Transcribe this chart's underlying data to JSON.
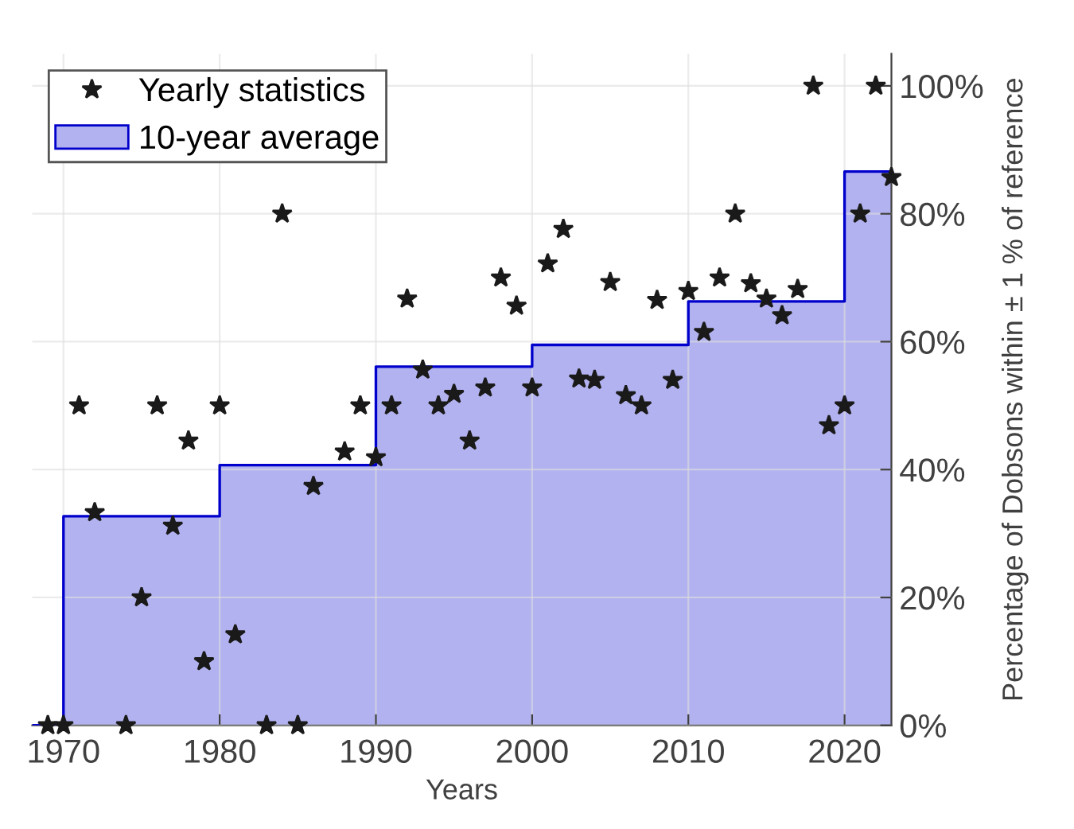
{
  "chart_data": {
    "type": "scatter",
    "xlabel": "Years",
    "ylabel": "Percentage of Dobsons within ± 1 % of reference",
    "xlim": [
      1968,
      2023
    ],
    "xticks": [
      1970,
      1980,
      1990,
      2000,
      2010,
      2020
    ],
    "ylim": [
      0,
      105
    ],
    "yticks": [
      {
        "value": 0,
        "label": "0%"
      },
      {
        "value": 20,
        "label": "20%"
      },
      {
        "value": 40,
        "label": "40%"
      },
      {
        "value": 60,
        "label": "60%"
      },
      {
        "value": 80,
        "label": "80%"
      },
      {
        "value": 100,
        "label": "100%"
      }
    ],
    "grid": true,
    "legend": "top left",
    "series": [
      {
        "name": "Yearly statistics",
        "marker": "star",
        "color": "#1a1a1a",
        "x": [
          1969,
          1970,
          1971,
          1972,
          1974,
          1975,
          1976,
          1977,
          1978,
          1979,
          1980,
          1981,
          1983,
          1984,
          1985,
          1986,
          1988,
          1989,
          1990,
          1991,
          1992,
          1993,
          1994,
          1995,
          1996,
          1997,
          1998,
          1999,
          2000,
          2001,
          2002,
          2003,
          2004,
          2005,
          2006,
          2007,
          2008,
          2009,
          2010,
          2011,
          2012,
          2013,
          2014,
          2015,
          2016,
          2017,
          2018,
          2019,
          2020,
          2021,
          2022,
          2023
        ],
        "values": [
          0,
          0,
          50,
          33.3,
          0,
          20,
          50,
          31.2,
          44.5,
          10,
          50,
          14.2,
          0,
          80,
          0,
          37.4,
          42.8,
          50,
          41.9,
          50,
          66.7,
          55.6,
          50,
          51.8,
          44.5,
          52.8,
          70,
          65.6,
          52.8,
          72.2,
          77.6,
          54.2,
          54,
          69.3,
          51.6,
          50,
          66.5,
          54,
          67.9,
          61.5,
          70,
          80,
          69.1,
          66.7,
          64.1,
          68.2,
          100,
          46.9,
          50,
          80,
          100,
          85.7
        ]
      },
      {
        "name": "10-year average",
        "type": "area",
        "color": "#0000cc",
        "x": [
          1968,
          1970,
          1970,
          1980,
          1980,
          1990,
          1990,
          2000,
          2000,
          2010,
          2010,
          2020,
          2020,
          2023
        ],
        "values": [
          0,
          0,
          32.7,
          32.7,
          40.7,
          40.7,
          56.1,
          56.1,
          59.5,
          59.5,
          66.3,
          66.3,
          86.6,
          86.6
        ]
      }
    ]
  }
}
